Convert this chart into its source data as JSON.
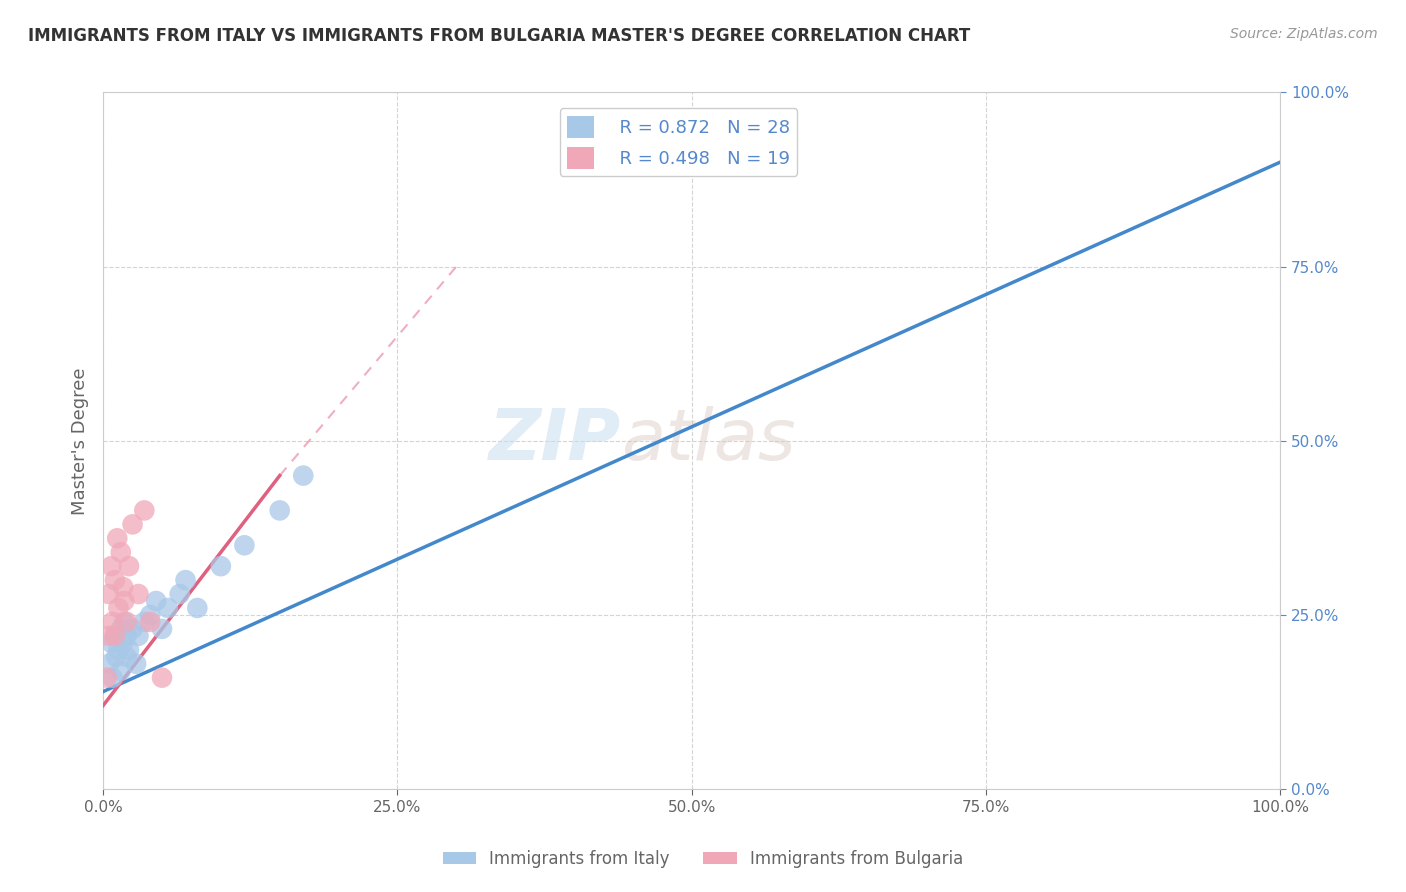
{
  "title": "IMMIGRANTS FROM ITALY VS IMMIGRANTS FROM BULGARIA MASTER'S DEGREE CORRELATION CHART",
  "source": "Source: ZipAtlas.com",
  "ylabel": "Master's Degree",
  "legend_labels": [
    "Immigrants from Italy",
    "Immigrants from Bulgaria"
  ],
  "watermark_part1": "ZIP",
  "watermark_part2": "atlas",
  "italy_R": "0.872",
  "italy_N": "28",
  "bulgaria_R": "0.498",
  "bulgaria_N": "19",
  "italy_color": "#a8c8e8",
  "italy_line_color": "#4488cc",
  "bulgaria_color": "#f0a8b8",
  "bulgaria_line_color": "#e06080",
  "italy_scatter_x": [
    0.5,
    0.7,
    0.8,
    1.0,
    1.1,
    1.3,
    1.5,
    1.5,
    1.7,
    1.8,
    2.0,
    2.0,
    2.2,
    2.5,
    2.8,
    3.0,
    3.5,
    4.0,
    4.5,
    5.0,
    5.5,
    6.5,
    7.0,
    8.0,
    10.0,
    12.0,
    15.0,
    17.0
  ],
  "italy_scatter_y": [
    18.0,
    21.0,
    16.0,
    22.0,
    19.0,
    20.0,
    23.0,
    17.0,
    21.0,
    24.0,
    19.0,
    22.0,
    20.0,
    23.0,
    18.0,
    22.0,
    24.0,
    25.0,
    27.0,
    23.0,
    26.0,
    28.0,
    30.0,
    26.0,
    32.0,
    35.0,
    40.0,
    45.0
  ],
  "bulgaria_scatter_x": [
    0.3,
    0.5,
    0.5,
    0.7,
    0.8,
    1.0,
    1.0,
    1.2,
    1.3,
    1.5,
    1.7,
    1.8,
    2.0,
    2.2,
    2.5,
    3.0,
    3.5,
    4.0,
    5.0
  ],
  "bulgaria_scatter_y": [
    16.0,
    22.0,
    28.0,
    32.0,
    24.0,
    30.0,
    22.0,
    36.0,
    26.0,
    34.0,
    29.0,
    27.0,
    24.0,
    32.0,
    38.0,
    28.0,
    40.0,
    24.0,
    16.0
  ],
  "italy_line_x0": 0.0,
  "italy_line_y0": 14.0,
  "italy_line_x1": 100.0,
  "italy_line_y1": 90.0,
  "bulgaria_line_x0": 0.0,
  "bulgaria_line_y0": 12.0,
  "bulgaria_line_x1": 15.0,
  "bulgaria_line_y1": 45.0,
  "bulgaria_dashed_x0": 0.0,
  "bulgaria_dashed_y0": 12.0,
  "bulgaria_dashed_x1": 30.0,
  "bulgaria_dashed_y1": 75.0,
  "xlim": [
    0.0,
    100.0
  ],
  "ylim": [
    0.0,
    100.0
  ],
  "xticks": [
    0.0,
    25.0,
    50.0,
    75.0,
    100.0
  ],
  "yticks": [
    0.0,
    25.0,
    50.0,
    75.0,
    100.0
  ],
  "xtick_labels": [
    "0.0%",
    "25.0%",
    "50.0%",
    "75.0%",
    "100.0%"
  ],
  "ytick_labels": [
    "0.0%",
    "25.0%",
    "50.0%",
    "75.0%",
    "100.0%"
  ],
  "grid_color": "#d0d0d0",
  "bg_color": "#ffffff",
  "title_color": "#333333",
  "axis_color": "#cccccc",
  "tick_color": "#5588cc",
  "label_color": "#666666"
}
